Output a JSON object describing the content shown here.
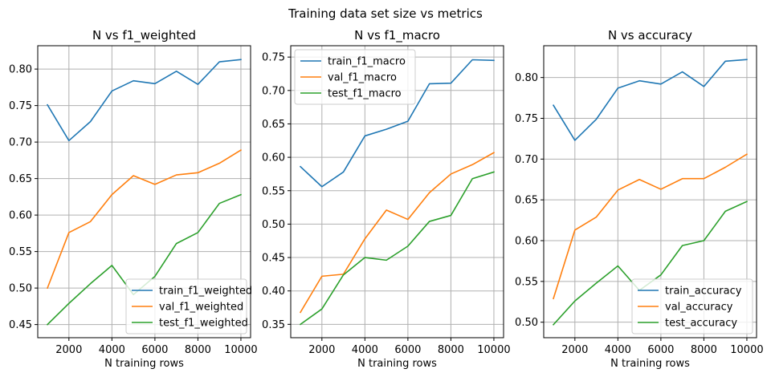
{
  "figure": {
    "suptitle": "Training data set size vs metrics"
  },
  "chart_data": [
    {
      "type": "line",
      "title": "N vs f1_weighted",
      "xlabel": "N training rows",
      "ylabel": "",
      "x": [
        1000,
        2000,
        3000,
        4000,
        5000,
        6000,
        7000,
        8000,
        9000,
        10000
      ],
      "xlim": [
        550,
        10450
      ],
      "ylim": [
        0.432,
        0.832
      ],
      "xticks": [
        2000,
        4000,
        6000,
        8000,
        10000
      ],
      "yticks": [
        0.45,
        0.5,
        0.55,
        0.6,
        0.65,
        0.7,
        0.75,
        0.8
      ],
      "ytick_labels": [
        "0.45",
        "0.50",
        "0.55",
        "0.60",
        "0.65",
        "0.70",
        "0.75",
        "0.80"
      ],
      "grid": true,
      "legend_loc": "lower right",
      "series": [
        {
          "name": "train_f1_weighted",
          "color": "#1f77b4",
          "values": [
            0.751,
            0.702,
            0.728,
            0.77,
            0.784,
            0.78,
            0.797,
            0.779,
            0.81,
            0.813
          ]
        },
        {
          "name": "val_f1_weighted",
          "color": "#ff7f0e",
          "values": [
            0.5,
            0.576,
            0.591,
            0.628,
            0.654,
            0.642,
            0.655,
            0.658,
            0.671,
            0.689
          ]
        },
        {
          "name": "test_f1_weighted",
          "color": "#2ca02c",
          "values": [
            0.45,
            0.479,
            0.506,
            0.531,
            0.491,
            0.516,
            0.561,
            0.576,
            0.616,
            0.628
          ]
        }
      ]
    },
    {
      "type": "line",
      "title": "N vs f1_macro",
      "xlabel": "N training rows",
      "ylabel": "",
      "x": [
        1000,
        2000,
        3000,
        4000,
        5000,
        6000,
        7000,
        8000,
        9000,
        10000
      ],
      "xlim": [
        550,
        10450
      ],
      "ylim": [
        0.33,
        0.767
      ],
      "xticks": [
        2000,
        4000,
        6000,
        8000,
        10000
      ],
      "yticks": [
        0.35,
        0.4,
        0.45,
        0.5,
        0.55,
        0.6,
        0.65,
        0.7,
        0.75
      ],
      "ytick_labels": [
        "0.35",
        "0.40",
        "0.45",
        "0.50",
        "0.55",
        "0.60",
        "0.65",
        "0.70",
        "0.75"
      ],
      "grid": true,
      "legend_loc": "upper left",
      "series": [
        {
          "name": "train_f1_macro",
          "color": "#1f77b4",
          "values": [
            0.586,
            0.556,
            0.578,
            0.632,
            0.642,
            0.654,
            0.71,
            0.711,
            0.746,
            0.745
          ]
        },
        {
          "name": "val_f1_macro",
          "color": "#ff7f0e",
          "values": [
            0.368,
            0.422,
            0.425,
            0.478,
            0.521,
            0.507,
            0.547,
            0.575,
            0.589,
            0.607
          ]
        },
        {
          "name": "test_f1_macro",
          "color": "#2ca02c",
          "values": [
            0.35,
            0.373,
            0.424,
            0.45,
            0.446,
            0.467,
            0.504,
            0.513,
            0.568,
            0.578
          ]
        }
      ]
    },
    {
      "type": "line",
      "title": "N vs accuracy",
      "xlabel": "N training rows",
      "ylabel": "",
      "x": [
        1000,
        2000,
        3000,
        4000,
        5000,
        6000,
        7000,
        8000,
        9000,
        10000
      ],
      "xlim": [
        550,
        10450
      ],
      "ylim": [
        0.481,
        0.839
      ],
      "xticks": [
        2000,
        4000,
        6000,
        8000,
        10000
      ],
      "yticks": [
        0.5,
        0.55,
        0.6,
        0.65,
        0.7,
        0.75,
        0.8
      ],
      "ytick_labels": [
        "0.50",
        "0.55",
        "0.60",
        "0.65",
        "0.70",
        "0.75",
        "0.80"
      ],
      "grid": true,
      "legend_loc": "lower right",
      "series": [
        {
          "name": "train_accuracy",
          "color": "#1f77b4",
          "values": [
            0.766,
            0.723,
            0.749,
            0.787,
            0.796,
            0.792,
            0.807,
            0.789,
            0.82,
            0.822
          ]
        },
        {
          "name": "val_accuracy",
          "color": "#ff7f0e",
          "values": [
            0.529,
            0.613,
            0.629,
            0.662,
            0.675,
            0.663,
            0.676,
            0.676,
            0.69,
            0.706
          ]
        },
        {
          "name": "test_accuracy",
          "color": "#2ca02c",
          "values": [
            0.497,
            0.526,
            0.548,
            0.569,
            0.539,
            0.558,
            0.594,
            0.6,
            0.636,
            0.648
          ]
        }
      ]
    }
  ]
}
